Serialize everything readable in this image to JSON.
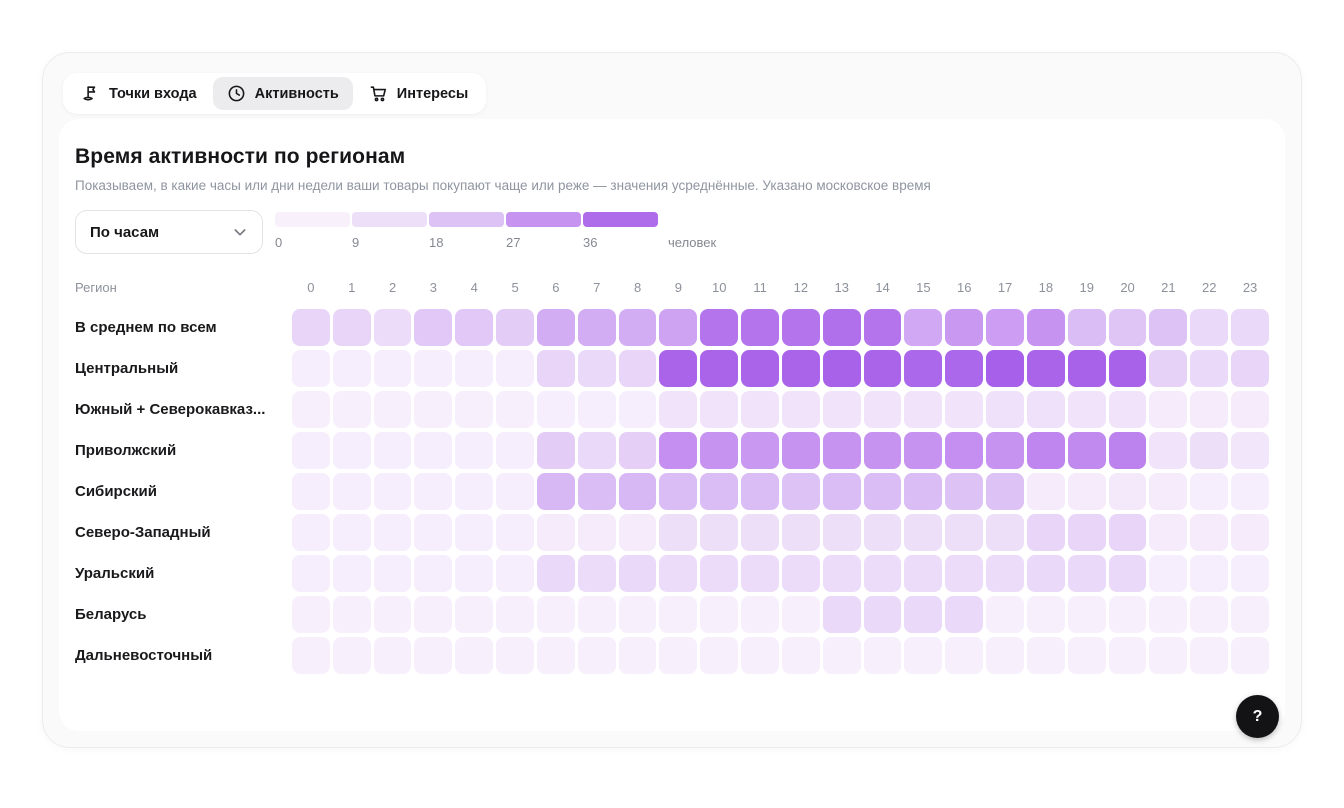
{
  "tabs": [
    {
      "label": "Точки входа",
      "icon": "flag-icon",
      "active": false
    },
    {
      "label": "Активность",
      "icon": "clock-icon",
      "active": true
    },
    {
      "label": "Интересы",
      "icon": "cart-icon",
      "active": false
    }
  ],
  "panel": {
    "title": "Время активности по регионам",
    "subtitle": "Показываем, в какие часы или дни недели ваши товары покупают чаще или реже — значения усреднённые. Указано московское время",
    "mode_select": {
      "value": "По часам"
    },
    "legend": {
      "stops": [
        {
          "value": "0",
          "color": "#f8f1fc"
        },
        {
          "value": "9",
          "color": "#eedff9"
        },
        {
          "value": "18",
          "color": "#ddc2f5"
        },
        {
          "value": "27",
          "color": "#c793f1"
        },
        {
          "value": "36",
          "color": "#ae6cea"
        }
      ],
      "unit": "человек"
    }
  },
  "chart_data": {
    "type": "heatmap",
    "title": "Время активности по регионам",
    "row_header": "Регион",
    "value_unit": "человек",
    "columns": [
      "0",
      "1",
      "2",
      "3",
      "4",
      "5",
      "6",
      "7",
      "8",
      "9",
      "10",
      "11",
      "12",
      "13",
      "14",
      "15",
      "16",
      "17",
      "18",
      "19",
      "20",
      "21",
      "22",
      "23"
    ],
    "rows": [
      {
        "name": "В среднем по всем",
        "values": [
          12,
          12,
          10,
          16,
          16,
          15,
          22,
          22,
          22,
          24,
          34,
          34,
          34,
          35,
          34,
          23,
          26,
          25,
          27,
          19,
          17,
          18,
          11,
          11
        ]
      },
      {
        "name": "Центральный",
        "values": [
          3,
          3,
          3,
          3,
          3,
          3,
          12,
          11,
          12,
          40,
          40,
          40,
          40,
          41,
          40,
          38,
          38,
          42,
          40,
          41,
          41,
          13,
          11,
          12
        ]
      },
      {
        "name": "Южный + Северокавказ...",
        "values": [
          2,
          2,
          2,
          2,
          2,
          2,
          3,
          3,
          3,
          7,
          7,
          7,
          7,
          7,
          7,
          7,
          7,
          8,
          8,
          7,
          7,
          4,
          4,
          4
        ]
      },
      {
        "name": "Приволжский",
        "values": [
          3,
          3,
          3,
          3,
          3,
          3,
          15,
          11,
          14,
          28,
          27,
          26,
          27,
          27,
          27,
          27,
          28,
          27,
          30,
          29,
          31,
          7,
          9,
          6
        ]
      },
      {
        "name": "Сибирский",
        "values": [
          3,
          3,
          3,
          3,
          3,
          3,
          20,
          19,
          20,
          19,
          19,
          19,
          18,
          19,
          19,
          19,
          18,
          18,
          4,
          4,
          5,
          4,
          3,
          3
        ]
      },
      {
        "name": "Северо-Западный",
        "values": [
          3,
          3,
          3,
          3,
          3,
          3,
          4,
          4,
          4,
          9,
          9,
          9,
          9,
          9,
          9,
          9,
          9,
          9,
          12,
          12,
          12,
          4,
          4,
          4
        ]
      },
      {
        "name": "Уральский",
        "values": [
          3,
          3,
          3,
          3,
          3,
          3,
          11,
          10,
          11,
          10,
          10,
          10,
          10,
          10,
          10,
          10,
          10,
          10,
          11,
          11,
          11,
          3,
          3,
          3
        ]
      },
      {
        "name": "Беларусь",
        "values": [
          2,
          2,
          2,
          2,
          2,
          2,
          2,
          2,
          2,
          2,
          2,
          2,
          2,
          11,
          11,
          11,
          11,
          2,
          2,
          2,
          2,
          2,
          2,
          2
        ]
      },
      {
        "name": "Дальневосточный",
        "values": [
          2,
          2,
          2,
          2,
          2,
          2,
          2,
          2,
          2,
          2,
          2,
          2,
          2,
          2,
          2,
          2,
          2,
          2,
          2,
          2,
          2,
          2,
          2,
          2
        ]
      }
    ],
    "color_scale": {
      "stops": [
        [
          0,
          "#faf5fd"
        ],
        [
          9,
          "#eedff9"
        ],
        [
          18,
          "#ddc2f5"
        ],
        [
          27,
          "#c793f1"
        ],
        [
          36,
          "#ae6cea"
        ],
        [
          44,
          "#a55ce8"
        ]
      ],
      "legend_ticks": [
        0,
        9,
        18,
        27,
        36
      ],
      "unit": "человек"
    }
  },
  "help_button": {
    "label": "?"
  }
}
